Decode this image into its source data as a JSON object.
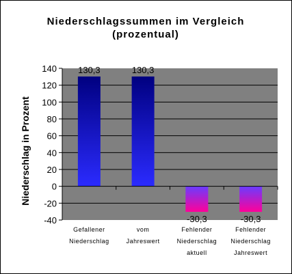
{
  "chart_data": {
    "type": "bar",
    "title": [
      "Niederschlagssummen im Vergleich",
      "(prozentual)"
    ],
    "ylabel": "Niederschlag in Prozent",
    "xlabel": "",
    "ylim": [
      -40,
      140
    ],
    "yticks": [
      140,
      120,
      100,
      80,
      60,
      40,
      20,
      0,
      -20,
      -40
    ],
    "grid": true,
    "plot_background": "#808080",
    "categories": [
      [
        "Gefallener",
        "Niederschlag"
      ],
      [
        "vom",
        "Jahreswert"
      ],
      [
        "Fehlender",
        "Niederschlag",
        "aktuell"
      ],
      [
        "Fehlender",
        "Niederschlag",
        "Jahreswert"
      ]
    ],
    "values": [
      130.3,
      130.3,
      -30.3,
      -30.3
    ],
    "data_labels": [
      "130,3",
      "130,3",
      "-30,3",
      "-30,3"
    ],
    "colors": {
      "positive_top": "#000080",
      "positive_bottom": "#2b2bff",
      "negative_top": "#6a3cff",
      "negative_bottom": "#ff0099"
    }
  }
}
